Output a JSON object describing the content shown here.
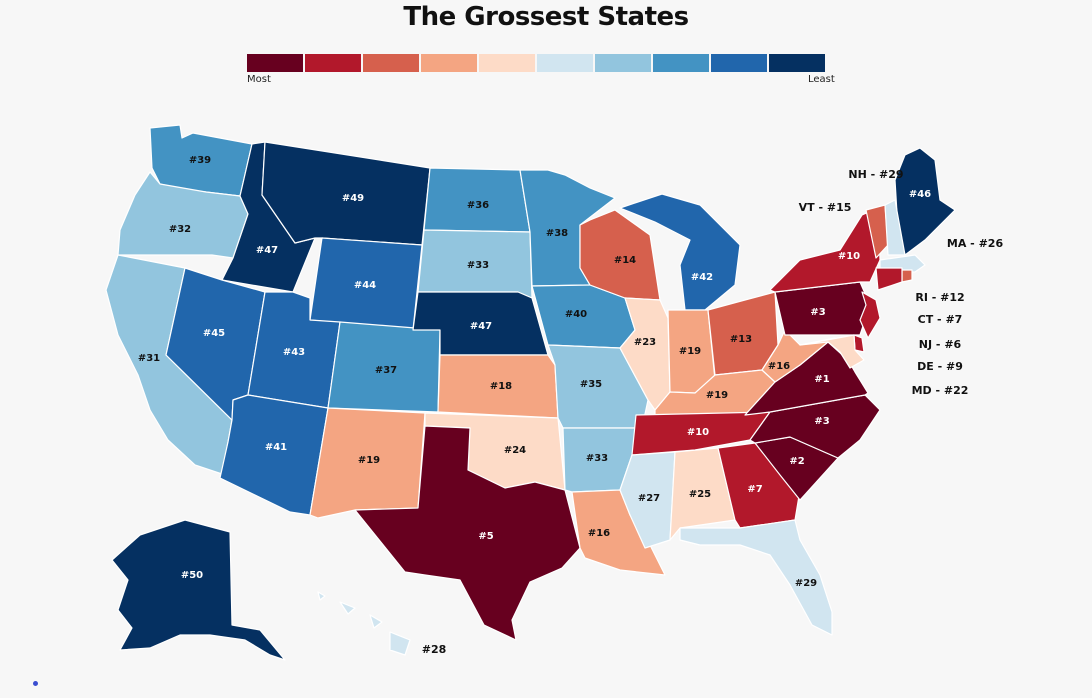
{
  "title": "The Grossest States",
  "legend": {
    "most_label": "Most",
    "least_label": "Least",
    "colors": [
      "#67001f",
      "#b2182b",
      "#d6604d",
      "#f4a582",
      "#fddbc7",
      "#d1e5f0",
      "#92c5de",
      "#4393c3",
      "#2166ac",
      "#053061"
    ]
  },
  "states": [
    {
      "abbr": "WA",
      "label": "#39",
      "bin": 7
    },
    {
      "abbr": "OR",
      "label": "#32",
      "bin": 6
    },
    {
      "abbr": "CA",
      "label": "#31",
      "bin": 6
    },
    {
      "abbr": "ID",
      "label": "#47",
      "bin": 9
    },
    {
      "abbr": "NV",
      "label": "#45",
      "bin": 8
    },
    {
      "abbr": "MT",
      "label": "#49",
      "bin": 9
    },
    {
      "abbr": "WY",
      "label": "#44",
      "bin": 8
    },
    {
      "abbr": "UT",
      "label": "#43",
      "bin": 8
    },
    {
      "abbr": "AZ",
      "label": "#41",
      "bin": 8
    },
    {
      "abbr": "CO",
      "label": "#37",
      "bin": 7
    },
    {
      "abbr": "NM",
      "label": "#19",
      "bin": 3
    },
    {
      "abbr": "ND",
      "label": "#36",
      "bin": 7
    },
    {
      "abbr": "SD",
      "label": "#33",
      "bin": 6
    },
    {
      "abbr": "NE",
      "label": "#47",
      "bin": 9
    },
    {
      "abbr": "KS",
      "label": "#18",
      "bin": 3
    },
    {
      "abbr": "OK",
      "label": "#24",
      "bin": 4
    },
    {
      "abbr": "TX",
      "label": "#5",
      "bin": 0
    },
    {
      "abbr": "MN",
      "label": "#38",
      "bin": 7
    },
    {
      "abbr": "IA",
      "label": "#40",
      "bin": 7
    },
    {
      "abbr": "MO",
      "label": "#35",
      "bin": 6
    },
    {
      "abbr": "AR",
      "label": "#33",
      "bin": 6
    },
    {
      "abbr": "LA",
      "label": "#16",
      "bin": 3
    },
    {
      "abbr": "WI",
      "label": "#14",
      "bin": 2
    },
    {
      "abbr": "IL",
      "label": "#23",
      "bin": 4
    },
    {
      "abbr": "MI",
      "label": "#42",
      "bin": 8
    },
    {
      "abbr": "IN",
      "label": "#19",
      "bin": 3
    },
    {
      "abbr": "OH",
      "label": "#13",
      "bin": 2
    },
    {
      "abbr": "KY",
      "label": "#19",
      "bin": 3
    },
    {
      "abbr": "TN",
      "label": "#10",
      "bin": 1
    },
    {
      "abbr": "MS",
      "label": "#27",
      "bin": 5
    },
    {
      "abbr": "AL",
      "label": "#25",
      "bin": 4
    },
    {
      "abbr": "GA",
      "label": "#7",
      "bin": 1
    },
    {
      "abbr": "FL",
      "label": "#29",
      "bin": 5
    },
    {
      "abbr": "SC",
      "label": "#2",
      "bin": 0
    },
    {
      "abbr": "NC",
      "label": "#3",
      "bin": 0
    },
    {
      "abbr": "VA",
      "label": "#1",
      "bin": 0
    },
    {
      "abbr": "WV",
      "label": "#16",
      "bin": 3
    },
    {
      "abbr": "PA",
      "label": "#3",
      "bin": 0
    },
    {
      "abbr": "NY",
      "label": "#10",
      "bin": 1
    },
    {
      "abbr": "ME",
      "label": "#46",
      "bin": 9
    },
    {
      "abbr": "AK",
      "label": "#50",
      "bin": 9
    },
    {
      "abbr": "HI",
      "label": "#28",
      "bin": 5
    },
    {
      "abbr": "VT",
      "label": "VT - #15",
      "bin": 2
    },
    {
      "abbr": "NH",
      "label": "NH - #29",
      "bin": 5
    },
    {
      "abbr": "MA",
      "label": "MA - #26",
      "bin": 5
    },
    {
      "abbr": "RI",
      "label": "RI - #12",
      "bin": 2
    },
    {
      "abbr": "CT",
      "label": "CT - #7",
      "bin": 1
    },
    {
      "abbr": "NJ",
      "label": "NJ - #6",
      "bin": 1
    },
    {
      "abbr": "DE",
      "label": "DE - #9",
      "bin": 1
    },
    {
      "abbr": "MD",
      "label": "MD - #22",
      "bin": 4
    }
  ]
}
